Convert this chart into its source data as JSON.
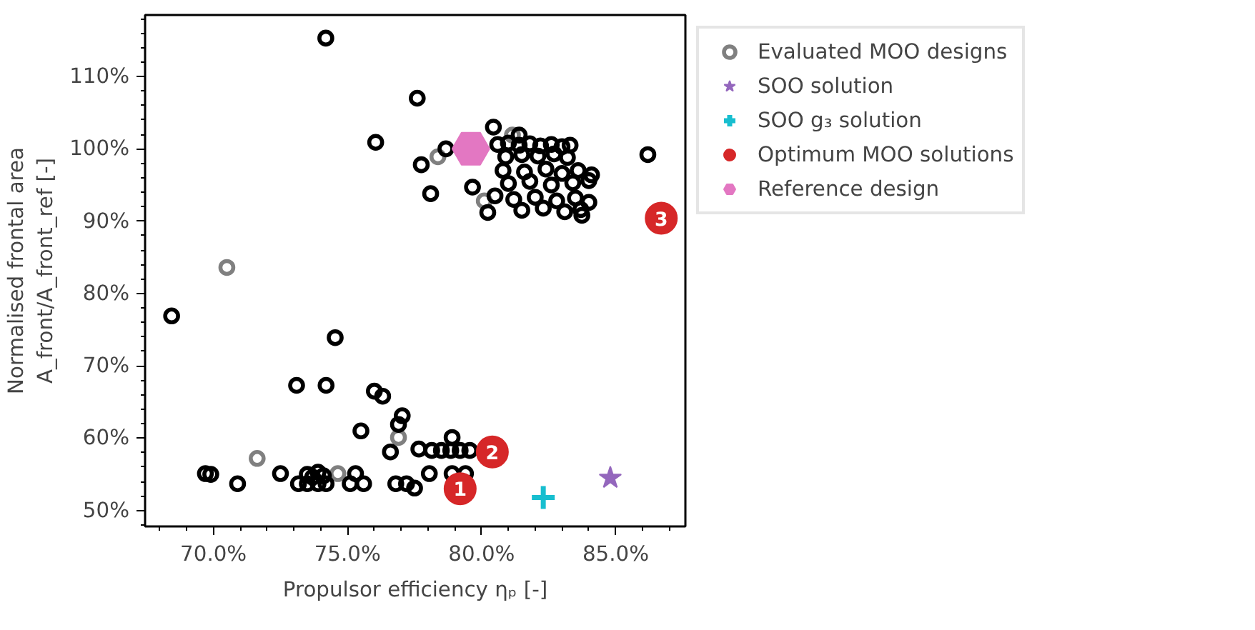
{
  "chart_data": {
    "type": "scatter",
    "xlabel": "Propulsor efficiency ηₚ [-]",
    "ylabel": "Normalised frontal area\nA_front/A_front_ref [-]",
    "xlim": [
      67.45,
      87.6
    ],
    "ylim": [
      47.8,
      118.5
    ],
    "xticks": [
      {
        "value": 70,
        "label": "70.0%"
      },
      {
        "value": 75,
        "label": "75.0%"
      },
      {
        "value": 80,
        "label": "80.0%"
      },
      {
        "value": 85,
        "label": "85.0%"
      }
    ],
    "yticks": [
      {
        "value": 50,
        "label": "50%"
      },
      {
        "value": 60,
        "label": "60%"
      },
      {
        "value": 70,
        "label": "70%"
      },
      {
        "value": 80,
        "label": "80%"
      },
      {
        "value": 90,
        "label": "90%"
      },
      {
        "value": 100,
        "label": "100%"
      },
      {
        "value": 110,
        "label": "110%"
      }
    ],
    "grid": false,
    "legend": "right",
    "series": [
      {
        "name": "Evaluated MOO designs",
        "color": "#808080",
        "marker": "circle",
        "x": [
          70.5,
          78.37,
          81.15,
          80.1,
          76.9,
          71.63,
          74.64
        ],
        "values": [
          83.6,
          98.9,
          101.9,
          92.8,
          60.1,
          57.2,
          55.1
        ]
      },
      {
        "color": "#000000",
        "marker": "circle",
        "x": [
          74.19,
          77.6,
          76.05,
          77.75,
          78.1,
          78.67,
          80.44,
          86.2,
          79.66,
          80.23,
          83.74,
          81.4,
          80.6,
          81.0,
          81.4,
          81.8,
          82.2,
          82.6,
          83.0,
          83.3,
          80.9,
          81.5,
          82.1,
          82.7,
          83.2,
          80.8,
          81.6,
          82.4,
          83.0,
          83.6,
          84.1,
          81.0,
          81.8,
          82.6,
          83.4,
          84.0,
          80.5,
          81.2,
          82.0,
          82.8,
          83.5,
          84.0,
          81.5,
          82.3,
          83.1,
          83.7,
          68.44,
          74.54,
          73.1,
          74.2,
          76.0,
          76.31,
          77.04,
          76.9,
          75.5,
          76.6,
          78.9,
          77.66,
          78.14,
          78.5,
          78.85,
          79.2,
          79.56,
          69.7,
          69.9,
          72.5,
          75.3,
          78.05,
          78.9,
          79.4,
          73.5,
          73.7,
          73.9,
          74.1,
          70.9,
          73.17,
          73.5,
          73.9,
          74.2,
          75.1,
          75.6,
          76.8,
          77.2,
          77.5
        ],
        "values": [
          115.3,
          107.0,
          100.9,
          97.8,
          93.8,
          100.0,
          103.0,
          99.2,
          94.7,
          91.2,
          90.8,
          101.9,
          100.6,
          100.8,
          100.5,
          100.7,
          100.4,
          100.6,
          100.3,
          100.5,
          98.9,
          99.2,
          99.0,
          99.3,
          98.8,
          97.0,
          96.8,
          97.2,
          96.6,
          97.0,
          96.4,
          95.2,
          95.5,
          95.0,
          95.3,
          95.6,
          93.5,
          93.0,
          93.3,
          92.8,
          93.2,
          92.6,
          91.5,
          91.8,
          91.3,
          91.6,
          76.9,
          73.9,
          67.3,
          67.3,
          66.5,
          65.8,
          63.1,
          61.9,
          61.0,
          58.1,
          60.1,
          58.5,
          58.3,
          58.3,
          58.3,
          58.3,
          58.3,
          55.1,
          55.0,
          55.1,
          55.1,
          55.1,
          55.1,
          55.1,
          55.0,
          54.6,
          55.3,
          54.8,
          53.7,
          53.7,
          53.7,
          53.7,
          53.7,
          53.7,
          53.7,
          53.7,
          53.7,
          53.1
        ]
      },
      {
        "name": "SOO solution",
        "color": "#9467bd",
        "marker": "star",
        "x": [
          84.8
        ],
        "values": [
          54.5
        ]
      },
      {
        "name": "SOO g₃ solution",
        "color": "#17becf",
        "marker": "cross",
        "x": [
          82.3
        ],
        "values": [
          51.8
        ]
      },
      {
        "name": "Optimum MOO solutions",
        "color": "#d62728",
        "marker": "circle",
        "x": [
          79.2,
          80.4,
          86.7
        ],
        "values": [
          53.0,
          58.1,
          90.4
        ]
      },
      {
        "name": "Reference design",
        "color": "#e377c2",
        "x": [
          79.6
        ],
        "values": [
          100.0
        ]
      }
    ],
    "annotations": [
      {
        "text": "1",
        "x": 79.2,
        "y": 53.0
      },
      {
        "text": "2",
        "x": 80.4,
        "y": 58.1
      },
      {
        "text": "3",
        "x": 86.7,
        "y": 90.4
      }
    ]
  }
}
